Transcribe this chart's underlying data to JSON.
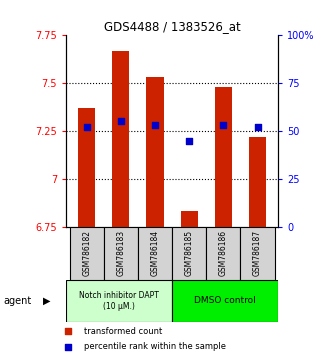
{
  "title": "GDS4488 / 1383526_at",
  "samples": [
    "GSM786182",
    "GSM786183",
    "GSM786184",
    "GSM786185",
    "GSM786186",
    "GSM786187"
  ],
  "bar_bottoms": [
    6.75,
    6.75,
    6.75,
    6.75,
    6.75,
    6.75
  ],
  "bar_tops": [
    7.37,
    7.67,
    7.53,
    6.83,
    7.48,
    7.22
  ],
  "bar_color": "#cc2200",
  "percentile_values": [
    7.27,
    7.3,
    7.28,
    7.2,
    7.28,
    7.27
  ],
  "percentile_color": "#0000cc",
  "ylim_left": [
    6.75,
    7.75
  ],
  "ylim_right": [
    0,
    100
  ],
  "yticks_left": [
    6.75,
    7.0,
    7.25,
    7.5,
    7.75
  ],
  "ytick_labels_left": [
    "6.75",
    "7",
    "7.25",
    "7.5",
    "7.75"
  ],
  "yticks_right": [
    0,
    25,
    50,
    75,
    100
  ],
  "ytick_labels_right": [
    "0",
    "25",
    "50",
    "75",
    "100%"
  ],
  "hlines": [
    7.0,
    7.25,
    7.5
  ],
  "group1_label": "Notch inhibitor DAPT\n(10 μM.)",
  "group2_label": "DMSO control",
  "group1_color": "#ccffcc",
  "group2_color": "#00ee00",
  "agent_label": "agent",
  "legend1_label": "transformed count",
  "legend2_label": "percentile rank within the sample",
  "bar_width": 0.5
}
